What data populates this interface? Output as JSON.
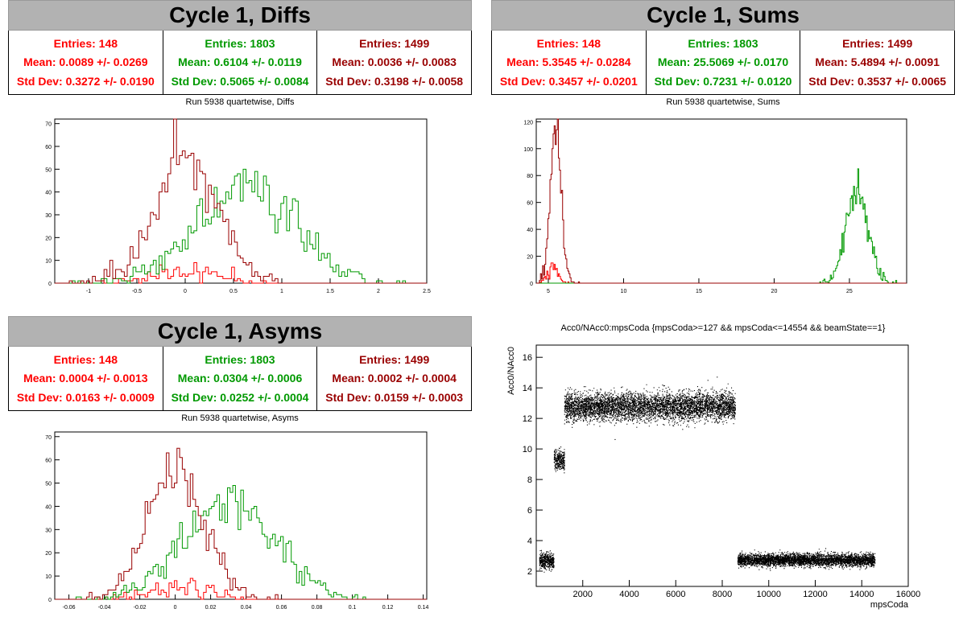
{
  "colors": {
    "red": "#ff0000",
    "green": "#009900",
    "darkred": "#990000",
    "title_bg": "#b2b2b2"
  },
  "panels": {
    "diffs": {
      "title": "Cycle 1, Diffs",
      "subtitle": "Run 5938 quartetwise, Diffs",
      "stats": [
        {
          "entries": "Entries: 148",
          "mean": "Mean: 0.0089 +/- 0.0269",
          "std": "Std Dev: 0.3272 +/- 0.0190"
        },
        {
          "entries": "Entries: 1803",
          "mean": "Mean: 0.6104 +/- 0.0119",
          "std": "Std Dev: 0.5065 +/- 0.0084"
        },
        {
          "entries": "Entries: 1499",
          "mean": "Mean: 0.0036 +/- 0.0083",
          "std": "Std Dev: 0.3198 +/- 0.0058"
        }
      ]
    },
    "sums": {
      "title": "Cycle 1, Sums",
      "subtitle": "Run 5938 quartetwise, Sums",
      "stats": [
        {
          "entries": "Entries: 148",
          "mean": "Mean: 5.3545 +/- 0.0284",
          "std": "Std Dev: 0.3457 +/- 0.0201"
        },
        {
          "entries": "Entries: 1803",
          "mean": "Mean: 25.5069 +/- 0.0170",
          "std": "Std Dev: 0.7231 +/- 0.0120"
        },
        {
          "entries": "Entries: 1499",
          "mean": "Mean: 5.4894 +/- 0.0091",
          "std": "Std Dev: 0.3537 +/- 0.0065"
        }
      ]
    },
    "asyms": {
      "title": "Cycle 1, Asyms",
      "subtitle": "Run 5938 quartetwise, Asyms",
      "stats": [
        {
          "entries": "Entries: 148",
          "mean": "Mean: 0.0004 +/- 0.0013",
          "std": "Std Dev: 0.0163 +/- 0.0009"
        },
        {
          "entries": "Entries: 1803",
          "mean": "Mean: 0.0304 +/- 0.0006",
          "std": "Std Dev: 0.0252 +/- 0.0004"
        },
        {
          "entries": "Entries: 1499",
          "mean": "Mean: 0.0002 +/- 0.0004",
          "std": "Std Dev: 0.0159 +/- 0.0003"
        }
      ]
    },
    "scatter": {
      "title": "Acc0/NAcc0:mpsCoda {mpsCoda>=127 && mpsCoda<=14554 && beamState==1}",
      "xlabel": "mpsCoda",
      "ylabel": "Acc0/NAcc0"
    }
  },
  "chart_data": [
    {
      "type": "histogram",
      "id": "diffs",
      "xlim": [
        -1.35,
        2.5
      ],
      "ylim": [
        0,
        72
      ],
      "xticks": [
        -1,
        -0.5,
        0,
        0.5,
        1,
        1.5,
        2,
        2.5
      ],
      "yticks": [
        0,
        10,
        20,
        30,
        40,
        50,
        60,
        70
      ],
      "series": [
        {
          "color": "red",
          "entries": 148,
          "mean": 0.0089,
          "std": 0.3272,
          "binwidth": 0.03
        },
        {
          "color": "green",
          "entries": 1803,
          "mean": 0.6104,
          "std": 0.5065,
          "binwidth": 0.03
        },
        {
          "color": "darkred",
          "entries": 1499,
          "mean": 0.0036,
          "std": 0.3198,
          "binwidth": 0.03
        }
      ]
    },
    {
      "type": "histogram",
      "id": "sums",
      "xlim": [
        4.2,
        28.8
      ],
      "ylim": [
        0,
        122
      ],
      "xticks": [
        5,
        10,
        15,
        20,
        25
      ],
      "yticks": [
        0,
        20,
        40,
        60,
        80,
        100,
        120
      ],
      "series": [
        {
          "color": "red",
          "entries": 148,
          "mean": 5.3545,
          "std": 0.3457,
          "binwidth": 0.07
        },
        {
          "color": "green",
          "entries": 1803,
          "mean": 25.5069,
          "std": 0.7231,
          "binwidth": 0.07
        },
        {
          "color": "darkred",
          "entries": 1499,
          "mean": 5.4894,
          "std": 0.3537,
          "binwidth": 0.07
        }
      ]
    },
    {
      "type": "histogram",
      "id": "asyms",
      "xlim": [
        -0.068,
        0.142
      ],
      "ylim": [
        0,
        72
      ],
      "xticks": [
        -0.06,
        -0.04,
        -0.02,
        0,
        0.02,
        0.04,
        0.06,
        0.08,
        0.1,
        0.12,
        0.14
      ],
      "yticks": [
        0,
        10,
        20,
        30,
        40,
        50,
        60,
        70
      ],
      "series": [
        {
          "color": "red",
          "entries": 148,
          "mean": 0.0004,
          "std": 0.0163,
          "binwidth": 0.0015
        },
        {
          "color": "green",
          "entries": 1803,
          "mean": 0.0304,
          "std": 0.0252,
          "binwidth": 0.0015
        },
        {
          "color": "darkred",
          "entries": 1499,
          "mean": 0.0002,
          "std": 0.0159,
          "binwidth": 0.0015
        }
      ]
    },
    {
      "type": "scatter",
      "id": "scatter",
      "xlim": [
        0,
        16000
      ],
      "ylim": [
        1,
        16.8
      ],
      "xticks": [
        2000,
        4000,
        6000,
        8000,
        10000,
        12000,
        14000,
        16000
      ],
      "yticks": [
        2,
        4,
        6,
        8,
        10,
        12,
        14,
        16
      ],
      "xlabel": "mpsCoda",
      "ylabel": "Acc0/NAcc0",
      "clusters": [
        {
          "x": [
            127,
            750
          ],
          "y_center": 2.7,
          "y_spread": 0.5
        },
        {
          "x": [
            750,
            1200
          ],
          "y_center": 9.3,
          "y_spread": 0.6
        },
        {
          "x": [
            1200,
            8550
          ],
          "y_center": 12.8,
          "y_spread": 0.9
        },
        {
          "x": [
            8650,
            14554
          ],
          "y_center": 2.75,
          "y_spread": 0.4
        }
      ]
    }
  ]
}
